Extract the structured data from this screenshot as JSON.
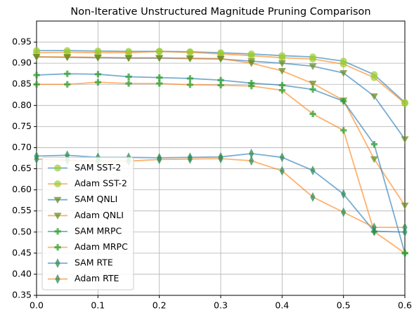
{
  "chart_data": {
    "type": "line",
    "title": "Non-Iterative Unstructured Magnitude Pruning Comparison",
    "x": [
      0,
      0.05,
      0.1,
      0.15,
      0.2,
      0.25,
      0.3,
      0.35,
      0.4,
      0.45,
      0.5,
      0.55,
      0.6
    ],
    "xlim": [
      0,
      0.6
    ],
    "xticks": [
      {
        "value": 0,
        "label": "0.0"
      },
      0.1,
      0.2,
      0.3,
      0.4,
      0.5,
      0.6
    ],
    "ylim": [
      0.35,
      1.0
    ],
    "yticks": [
      0.35,
      {
        "value": 0.4,
        "label": "0.40"
      },
      0.45,
      {
        "value": 0.5,
        "label": "0.50"
      },
      0.55,
      {
        "value": 0.6,
        "label": "0.60"
      },
      0.65,
      {
        "value": 0.7,
        "label": "0.70"
      },
      0.75,
      {
        "value": 0.8,
        "label": "0.80"
      },
      0.85,
      {
        "value": 0.9,
        "label": "0.90"
      },
      0.95
    ],
    "grid": true,
    "legend": "lower left",
    "series": [
      {
        "name": "SAM SST-2",
        "color": "#1f77b4",
        "marker": "circle",
        "marker_color": "#9acd32",
        "values": [
          0.93,
          0.93,
          0.929,
          0.928,
          0.928,
          0.927,
          0.925,
          0.922,
          0.918,
          0.915,
          0.905,
          0.873,
          0.807
        ]
      },
      {
        "name": "Adam SST-2",
        "color": "#ff7f0e",
        "marker": "circle",
        "marker_color": "#9acd32",
        "values": [
          0.925,
          0.926,
          0.925,
          0.925,
          0.928,
          0.926,
          0.922,
          0.918,
          0.913,
          0.91,
          0.898,
          0.866,
          0.805
        ]
      },
      {
        "name": "SAM QNLI",
        "color": "#1f77b4",
        "marker": "triangle-down",
        "marker_color": "#6b8e23",
        "values": [
          0.915,
          0.914,
          0.913,
          0.912,
          0.912,
          0.911,
          0.91,
          0.905,
          0.9,
          0.893,
          0.877,
          0.822,
          0.72
        ]
      },
      {
        "name": "Adam QNLI",
        "color": "#ff7f0e",
        "marker": "triangle-down",
        "marker_color": "#6b8e23",
        "values": [
          0.915,
          0.915,
          0.914,
          0.913,
          0.913,
          0.912,
          0.911,
          0.9,
          0.882,
          0.852,
          0.812,
          0.673,
          0.563
        ]
      },
      {
        "name": "SAM MRPC",
        "color": "#1f77b4",
        "marker": "plus",
        "marker_color": "#2ca02c",
        "values": [
          0.872,
          0.875,
          0.874,
          0.868,
          0.866,
          0.864,
          0.86,
          0.853,
          0.848,
          0.838,
          0.81,
          0.708,
          0.45
        ]
      },
      {
        "name": "Adam MRPC",
        "color": "#ff7f0e",
        "marker": "plus",
        "marker_color": "#2ca02c",
        "values": [
          0.85,
          0.85,
          0.855,
          0.852,
          0.852,
          0.849,
          0.848,
          0.846,
          0.836,
          0.78,
          0.741,
          0.501,
          0.45
        ]
      },
      {
        "name": "SAM RTE",
        "color": "#1f77b4",
        "marker": "diamond",
        "marker_color": "#2e8b57",
        "values": [
          0.68,
          0.682,
          0.677,
          0.677,
          0.676,
          0.677,
          0.678,
          0.686,
          0.677,
          0.646,
          0.59,
          0.502,
          0.5
        ]
      },
      {
        "name": "Adam RTE",
        "color": "#ff7f0e",
        "marker": "diamond",
        "marker_color": "#2e8b57",
        "values": [
          0.673,
          0.67,
          0.668,
          0.668,
          0.672,
          0.673,
          0.674,
          0.669,
          0.645,
          0.583,
          0.547,
          0.511,
          0.511
        ]
      }
    ]
  }
}
